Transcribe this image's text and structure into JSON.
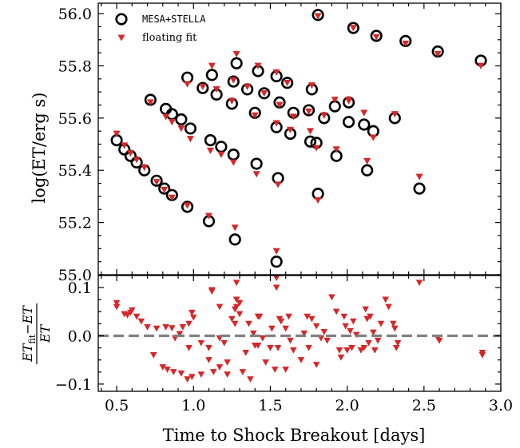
{
  "chart_data": [
    {
      "type": "scatter",
      "panel": "main",
      "ylabel": "log(ET/erg s)",
      "xlim": [
        0.38,
        3.0
      ],
      "ylim": [
        55.0,
        56.04
      ],
      "yticks": [
        55.0,
        55.2,
        55.4,
        55.6,
        55.8,
        56.0
      ],
      "ytick_labels": [
        "55.0",
        "55.2",
        "55.4",
        "55.6",
        "55.8",
        "56.0"
      ],
      "legend": {
        "placement": "top-left",
        "entries": [
          "MESA+STELLA",
          "floating fit"
        ]
      },
      "series": [
        {
          "name": "MESA+STELLA",
          "marker": "open-circle",
          "color": "#000000",
          "points": [
            [
              0.5,
              55.515
            ],
            [
              0.55,
              55.48
            ],
            [
              0.59,
              55.455
            ],
            [
              0.63,
              55.43
            ],
            [
              0.68,
              55.4
            ],
            [
              0.76,
              55.36
            ],
            [
              0.81,
              55.33
            ],
            [
              0.86,
              55.305
            ],
            [
              0.96,
              55.26
            ],
            [
              1.1,
              55.205
            ],
            [
              1.27,
              55.135
            ],
            [
              1.54,
              55.05
            ],
            [
              0.72,
              55.67
            ],
            [
              0.82,
              55.635
            ],
            [
              0.86,
              55.615
            ],
            [
              0.92,
              55.595
            ],
            [
              0.98,
              55.56
            ],
            [
              1.11,
              55.515
            ],
            [
              1.18,
              55.49
            ],
            [
              1.26,
              55.46
            ],
            [
              1.41,
              55.425
            ],
            [
              1.55,
              55.37
            ],
            [
              1.81,
              55.31
            ],
            [
              0.96,
              55.755
            ],
            [
              1.06,
              55.715
            ],
            [
              1.12,
              55.765
            ],
            [
              1.15,
              55.69
            ],
            [
              1.26,
              55.74
            ],
            [
              1.28,
              55.81
            ],
            [
              1.35,
              55.71
            ],
            [
              1.42,
              55.78
            ],
            [
              1.46,
              55.695
            ],
            [
              1.54,
              55.76
            ],
            [
              1.56,
              55.66
            ],
            [
              1.61,
              55.735
            ],
            [
              1.65,
              55.62
            ],
            [
              1.77,
              55.71
            ],
            [
              1.85,
              55.6
            ],
            [
              1.92,
              55.645
            ],
            [
              2.01,
              55.585
            ],
            [
              2.11,
              55.575
            ],
            [
              2.31,
              55.6
            ],
            [
              1.63,
              55.54
            ],
            [
              1.76,
              55.51
            ],
            [
              1.93,
              55.455
            ],
            [
              2.13,
              55.4
            ],
            [
              2.47,
              55.33
            ],
            [
              1.25,
              55.655
            ],
            [
              1.4,
              55.62
            ],
            [
              1.54,
              55.565
            ],
            [
              1.81,
              55.995
            ],
            [
              2.04,
              55.945
            ],
            [
              2.19,
              55.915
            ],
            [
              2.38,
              55.895
            ],
            [
              2.59,
              55.855
            ],
            [
              2.87,
              55.82
            ],
            [
              2.01,
              55.66
            ],
            [
              2.17,
              55.55
            ],
            [
              1.75,
              55.63
            ],
            [
              1.8,
              55.505
            ]
          ]
        },
        {
          "name": "floating fit",
          "marker": "triangle-down",
          "color": "#d62728",
          "points": [
            [
              0.5,
              55.54
            ],
            [
              0.55,
              55.495
            ],
            [
              0.59,
              55.465
            ],
            [
              0.63,
              55.44
            ],
            [
              0.68,
              55.41
            ],
            [
              0.76,
              55.355
            ],
            [
              0.81,
              55.325
            ],
            [
              0.86,
              55.295
            ],
            [
              0.96,
              55.265
            ],
            [
              1.1,
              55.225
            ],
            [
              1.27,
              55.18
            ],
            [
              1.54,
              55.09
            ],
            [
              0.72,
              55.66
            ],
            [
              0.82,
              55.605
            ],
            [
              0.86,
              55.585
            ],
            [
              0.92,
              55.56
            ],
            [
              0.98,
              55.52
            ],
            [
              1.11,
              55.475
            ],
            [
              1.18,
              55.46
            ],
            [
              1.26,
              55.43
            ],
            [
              1.41,
              55.385
            ],
            [
              1.55,
              55.345
            ],
            [
              1.81,
              55.285
            ],
            [
              0.96,
              55.73
            ],
            [
              1.06,
              55.72
            ],
            [
              1.12,
              55.8
            ],
            [
              1.15,
              55.71
            ],
            [
              1.26,
              55.745
            ],
            [
              1.28,
              55.845
            ],
            [
              1.35,
              55.72
            ],
            [
              1.42,
              55.8
            ],
            [
              1.46,
              55.695
            ],
            [
              1.54,
              55.775
            ],
            [
              1.56,
              55.65
            ],
            [
              1.61,
              55.735
            ],
            [
              1.65,
              55.605
            ],
            [
              1.77,
              55.725
            ],
            [
              1.85,
              55.61
            ],
            [
              1.92,
              55.67
            ],
            [
              2.01,
              55.67
            ],
            [
              2.11,
              55.62
            ],
            [
              2.31,
              55.615
            ],
            [
              1.63,
              55.555
            ],
            [
              1.76,
              55.55
            ],
            [
              1.93,
              55.48
            ],
            [
              2.13,
              55.435
            ],
            [
              2.47,
              55.375
            ],
            [
              1.25,
              55.665
            ],
            [
              1.4,
              55.61
            ],
            [
              1.54,
              55.58
            ],
            [
              1.81,
              55.99
            ],
            [
              2.04,
              55.945
            ],
            [
              2.19,
              55.91
            ],
            [
              2.38,
              55.885
            ],
            [
              2.59,
              55.845
            ],
            [
              2.87,
              55.8
            ],
            [
              2.01,
              55.665
            ],
            [
              2.17,
              55.525
            ],
            [
              1.75,
              55.625
            ],
            [
              1.8,
              55.485
            ]
          ]
        }
      ]
    },
    {
      "type": "scatter",
      "panel": "residual",
      "xlabel": "Time to Shock Breakout [days]",
      "ylabel": {
        "numerator_base": "ET",
        "numerator_sub": "fit",
        "numerator_rest": "−ET",
        "denominator": "ET"
      },
      "xlim": [
        0.38,
        3.0
      ],
      "ylim": [
        -0.115,
        0.125
      ],
      "xticks": [
        0.5,
        1.0,
        1.5,
        2.0,
        2.5,
        3.0
      ],
      "xtick_labels": [
        "0.5",
        "1.0",
        "1.5",
        "2.0",
        "2.5",
        "3.0"
      ],
      "yticks": [
        -0.1,
        0.0,
        0.1
      ],
      "ytick_labels": [
        "−0.1",
        "0.0",
        "0.1"
      ],
      "reference_line": {
        "y": 0.0,
        "style": "dashed",
        "color": "#808080"
      },
      "series": [
        {
          "name": "floating fit",
          "marker": "triangle-down",
          "color": "#d62728",
          "points": [
            [
              0.5,
              0.068
            ],
            [
              0.5,
              0.06
            ],
            [
              0.55,
              0.045
            ],
            [
              0.57,
              0.043
            ],
            [
              0.59,
              0.048
            ],
            [
              0.6,
              0.053
            ],
            [
              0.63,
              0.04
            ],
            [
              0.66,
              0.03
            ],
            [
              0.7,
              0.018
            ],
            [
              0.74,
              -0.04
            ],
            [
              0.76,
              0.015
            ],
            [
              0.8,
              -0.065
            ],
            [
              0.82,
              0.018
            ],
            [
              0.83,
              -0.07
            ],
            [
              0.86,
              0.016
            ],
            [
              0.87,
              -0.075
            ],
            [
              0.88,
              -0.005
            ],
            [
              0.91,
              0.004
            ],
            [
              0.92,
              -0.078
            ],
            [
              0.93,
              0.018
            ],
            [
              0.96,
              -0.09
            ],
            [
              0.97,
              0.025
            ],
            [
              0.97,
              -0.025
            ],
            [
              0.99,
              0.048
            ],
            [
              0.99,
              -0.085
            ],
            [
              1.0,
              0.038
            ],
            [
              1.05,
              -0.08
            ],
            [
              1.05,
              -0.015
            ],
            [
              1.1,
              -0.05
            ],
            [
              1.1,
              -0.025
            ],
            [
              1.12,
              0.095
            ],
            [
              1.12,
              0.092
            ],
            [
              1.13,
              -0.075
            ],
            [
              1.17,
              -0.065
            ],
            [
              1.17,
              0.06
            ],
            [
              1.17,
              -0.005
            ],
            [
              1.2,
              -0.015
            ],
            [
              1.22,
              -0.055
            ],
            [
              1.22,
              -0.08
            ],
            [
              1.25,
              0.035
            ],
            [
              1.27,
              0.055
            ],
            [
              1.27,
              0.025
            ],
            [
              1.28,
              0.11
            ],
            [
              1.28,
              0.075
            ],
            [
              1.28,
              0.06
            ],
            [
              1.3,
              0.068
            ],
            [
              1.3,
              0.045
            ],
            [
              1.32,
              -0.075
            ],
            [
              1.34,
              -0.035
            ],
            [
              1.36,
              0.025
            ],
            [
              1.37,
              -0.09
            ],
            [
              1.39,
              0.005
            ],
            [
              1.4,
              -0.02
            ],
            [
              1.42,
              0.04
            ],
            [
              1.42,
              -0.02
            ],
            [
              1.43,
              0.04
            ],
            [
              1.45,
              -0.005
            ],
            [
              1.47,
              -0.055
            ],
            [
              1.5,
              -0.025
            ],
            [
              1.51,
              0.015
            ],
            [
              1.53,
              -0.07
            ],
            [
              1.54,
              0.12
            ],
            [
              1.54,
              0.1
            ],
            [
              1.55,
              -0.025
            ],
            [
              1.56,
              0.035
            ],
            [
              1.57,
              0.03
            ],
            [
              1.6,
              -0.07
            ],
            [
              1.6,
              0.015
            ],
            [
              1.62,
              0.04
            ],
            [
              1.63,
              -0.01
            ],
            [
              1.65,
              -0.03
            ],
            [
              1.7,
              -0.05
            ],
            [
              1.72,
              0.005
            ],
            [
              1.74,
              0.04
            ],
            [
              1.75,
              -0.025
            ],
            [
              1.77,
              0.035
            ],
            [
              1.8,
              0.02
            ],
            [
              1.8,
              -0.06
            ],
            [
              1.83,
              -0.005
            ],
            [
              1.85,
              0.008
            ],
            [
              1.87,
              -0.01
            ],
            [
              1.9,
              0.08
            ],
            [
              1.93,
              0.05
            ],
            [
              1.95,
              -0.03
            ],
            [
              1.96,
              -0.045
            ],
            [
              1.98,
              0.04
            ],
            [
              1.99,
              0.02
            ],
            [
              2.0,
              -0.03
            ],
            [
              2.02,
              0.01
            ],
            [
              2.03,
              -0.025
            ],
            [
              2.04,
              0.03
            ],
            [
              2.06,
              0.002
            ],
            [
              2.09,
              -0.03
            ],
            [
              2.11,
              -0.025
            ],
            [
              2.12,
              0.055
            ],
            [
              2.13,
              0.035
            ],
            [
              2.14,
              -0.015
            ],
            [
              2.15,
              0.04
            ],
            [
              2.17,
              0.007
            ],
            [
              2.18,
              -0.03
            ],
            [
              2.2,
              -0.01
            ],
            [
              2.22,
              0.025
            ],
            [
              2.25,
              0.075
            ],
            [
              2.27,
              0.06
            ],
            [
              2.3,
              0.025
            ],
            [
              2.31,
              0.015
            ],
            [
              2.32,
              -0.025
            ],
            [
              2.33,
              -0.015
            ],
            [
              2.47,
              0.11
            ],
            [
              2.59,
              -0.005
            ],
            [
              2.6,
              -0.01
            ],
            [
              2.88,
              -0.035
            ],
            [
              2.88,
              -0.04
            ]
          ]
        }
      ]
    }
  ]
}
